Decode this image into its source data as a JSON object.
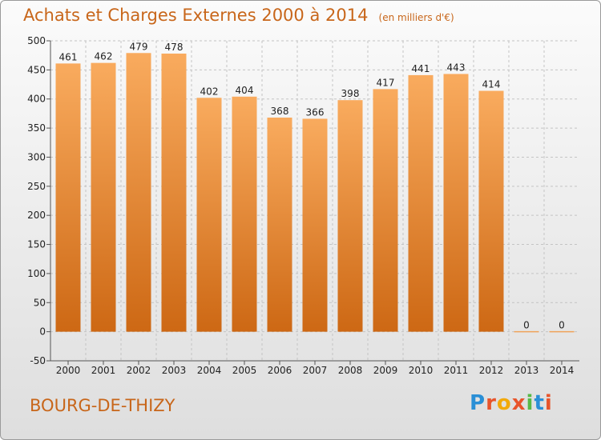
{
  "header": {
    "title": "Achats et Charges Externes 2000 à 2014",
    "unit": "(en milliers d'€)"
  },
  "footer": {
    "city": "BOURG-DE-THIZY",
    "logo_text": "Proxiti"
  },
  "colors": {
    "accent": "#c8661a",
    "bar_light": "#f7a85a",
    "bar_dark": "#cf6a16"
  },
  "chart_data": {
    "type": "bar",
    "title": "Achats et Charges Externes 2000 à 2014",
    "subtitle": "(en milliers d'€)",
    "categories": [
      "2000",
      "2001",
      "2002",
      "2003",
      "2004",
      "2005",
      "2006",
      "2007",
      "2008",
      "2009",
      "2010",
      "2011",
      "2012",
      "2013",
      "2014"
    ],
    "values": [
      461,
      462,
      479,
      478,
      402,
      404,
      368,
      366,
      398,
      417,
      441,
      443,
      414,
      0,
      0
    ],
    "ylim": [
      -50,
      500
    ],
    "yticks": [
      -50,
      0,
      50,
      100,
      150,
      200,
      250,
      300,
      350,
      400,
      450,
      500
    ],
    "grid": "horizontal dashed",
    "legend": "none"
  }
}
